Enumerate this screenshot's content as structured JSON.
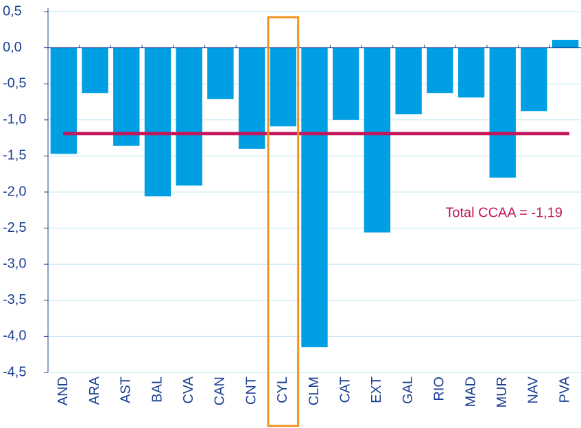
{
  "chart_data": {
    "type": "bar",
    "categories": [
      "AND",
      "ARA",
      "AST",
      "BAL",
      "CVA",
      "CAN",
      "CNT",
      "CYL",
      "CLM",
      "CAT",
      "EXT",
      "GAL",
      "RIO",
      "MAD",
      "MUR",
      "NAV",
      "PVA"
    ],
    "values": [
      -1.47,
      -0.63,
      -1.36,
      -2.06,
      -1.91,
      -0.71,
      -1.4,
      -1.09,
      -4.15,
      -1.0,
      -2.56,
      -0.92,
      -0.63,
      -0.69,
      -1.8,
      -0.88,
      0.11
    ],
    "color": "#009fe3",
    "ylim": [
      -4.5,
      0.5
    ],
    "yticks": [
      {
        "value": 0.5,
        "label": "0,5"
      },
      {
        "value": 0.0,
        "label": "0,0"
      },
      {
        "value": -0.5,
        "label": "-0,5"
      },
      {
        "value": -1.0,
        "label": "-1,0"
      },
      {
        "value": -1.5,
        "label": "-1,5"
      },
      {
        "value": -2.0,
        "label": "-2,0"
      },
      {
        "value": -2.5,
        "label": "-2,5"
      },
      {
        "value": -3.0,
        "label": "-3,0"
      },
      {
        "value": -3.5,
        "label": "-3,5"
      },
      {
        "value": -4.0,
        "label": "-4,0"
      },
      {
        "value": -4.5,
        "label": "-4,5"
      }
    ],
    "grid": true,
    "reference_line": {
      "value": -1.19,
      "label": "Total CCAA = -1,19",
      "color": "#c2185b"
    },
    "highlight_index": 7,
    "highlight_color": "#f39323"
  }
}
